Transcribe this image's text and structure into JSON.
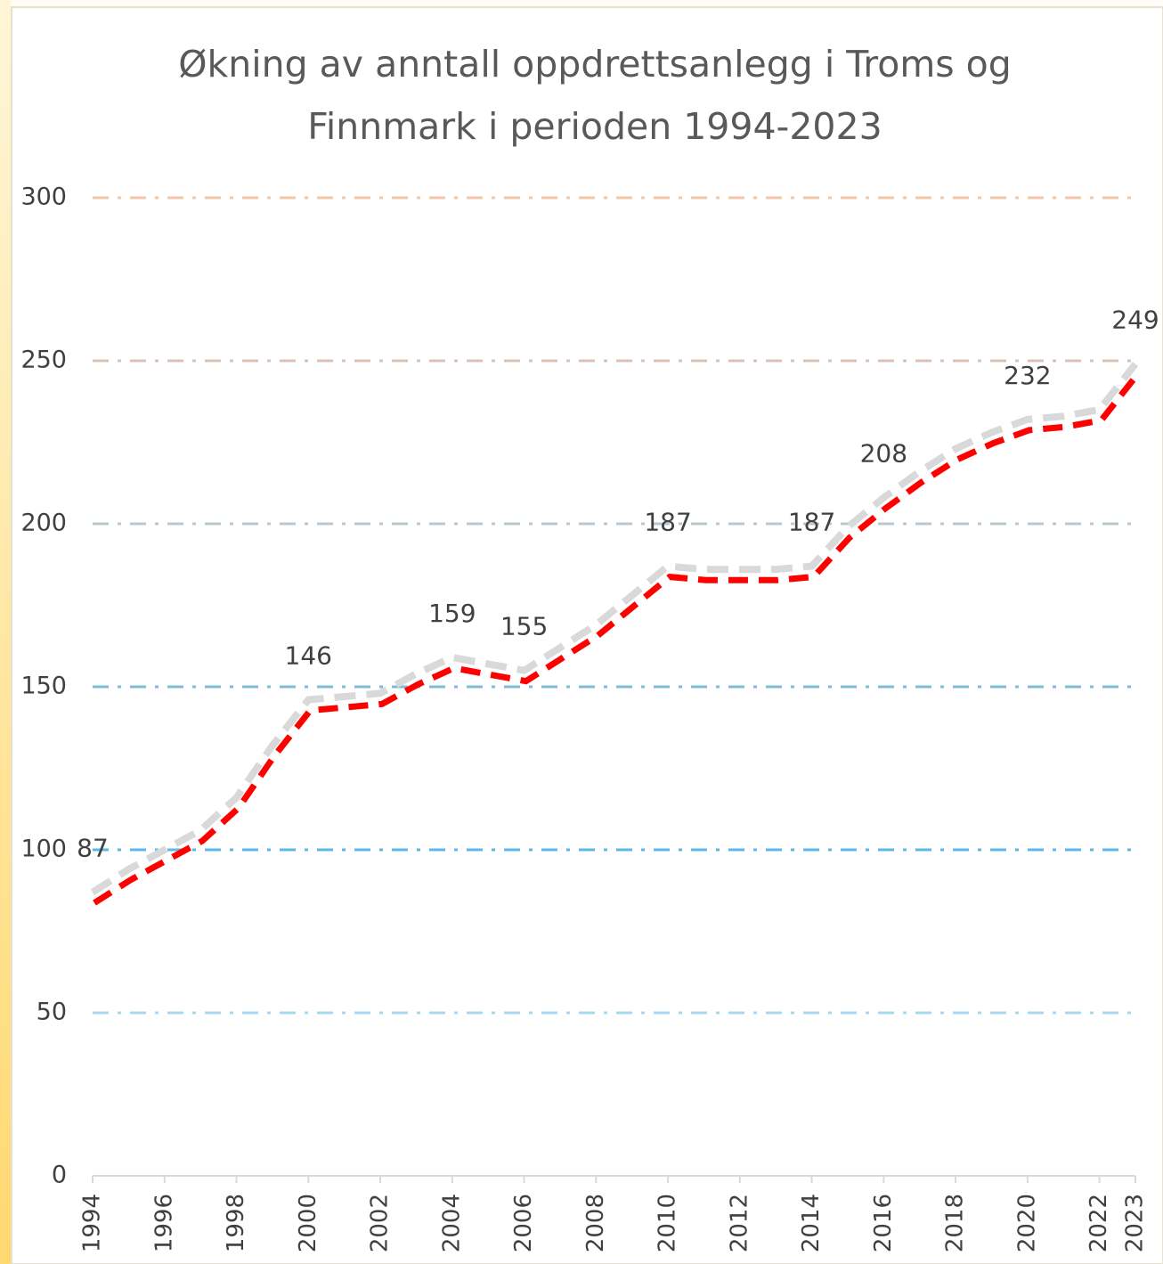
{
  "chart_data": {
    "type": "line",
    "title": [
      "Økning av anntall oppdrettsanlegg i Troms og",
      "Finnmark i perioden  1994-2023"
    ],
    "x": [
      1994,
      1995,
      1996,
      1997,
      1998,
      1999,
      2000,
      2001,
      2002,
      2003,
      2004,
      2005,
      2006,
      2007,
      2008,
      2009,
      2010,
      2011,
      2012,
      2013,
      2014,
      2015,
      2016,
      2017,
      2018,
      2019,
      2020,
      2021,
      2022,
      2023
    ],
    "series": [
      {
        "color": "#ff0000",
        "shadow_color": "#d9d9d9",
        "values": [
          87,
          94,
          100,
          106,
          116,
          132,
          146,
          147,
          148,
          154,
          159,
          157,
          155,
          162,
          169,
          178,
          187,
          186,
          186,
          186,
          187,
          199,
          208,
          216,
          223,
          228,
          232,
          233,
          235,
          249
        ],
        "value_labels": [
          "87",
          null,
          null,
          null,
          null,
          null,
          "146",
          null,
          null,
          null,
          "159",
          null,
          "155",
          null,
          null,
          null,
          "187",
          null,
          null,
          null,
          "187",
          null,
          "208",
          null,
          null,
          null,
          "232",
          null,
          null,
          "249"
        ]
      }
    ],
    "xlim": [
      1994,
      2023
    ],
    "xticks": [
      1994,
      1996,
      1998,
      2000,
      2002,
      2004,
      2006,
      2008,
      2010,
      2012,
      2014,
      2016,
      2018,
      2020,
      2022,
      2023
    ],
    "ylim": [
      0,
      300
    ],
    "yticks": [
      0,
      50,
      100,
      150,
      200,
      250,
      300
    ],
    "grid": true,
    "grid_colors": [
      "#d9d9d9",
      "#a8d8f0",
      "#5ab8e8",
      "#7fbcd8",
      "#b8c8d0",
      "#dcc0b4",
      "#f4c6a8"
    ]
  }
}
